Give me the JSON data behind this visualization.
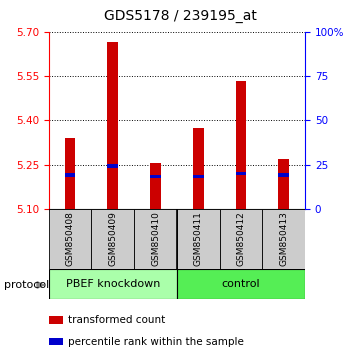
{
  "title": "GDS5178 / 239195_at",
  "samples": [
    "GSM850408",
    "GSM850409",
    "GSM850410",
    "GSM850411",
    "GSM850412",
    "GSM850413"
  ],
  "red_values": [
    5.34,
    5.665,
    5.255,
    5.375,
    5.535,
    5.27
  ],
  "blue_values": [
    5.215,
    5.245,
    5.21,
    5.21,
    5.22,
    5.215
  ],
  "ylim_left": [
    5.1,
    5.7
  ],
  "yticks_left": [
    5.1,
    5.25,
    5.4,
    5.55,
    5.7
  ],
  "yticks_right": [
    0,
    25,
    50,
    75,
    100
  ],
  "ylim_right": [
    0,
    100
  ],
  "bar_width": 0.25,
  "blue_bar_height": 0.012,
  "group1_color": "#aaffaa",
  "group2_color": "#55ee55",
  "sample_bg_color": "#cccccc",
  "red_bar_color": "#cc0000",
  "blue_bar_color": "#0000cc",
  "title_fontsize": 10,
  "tick_fontsize": 7.5,
  "sample_fontsize": 6.5,
  "group_fontsize": 8,
  "legend_fontsize": 7.5,
  "protocol_fontsize": 8
}
